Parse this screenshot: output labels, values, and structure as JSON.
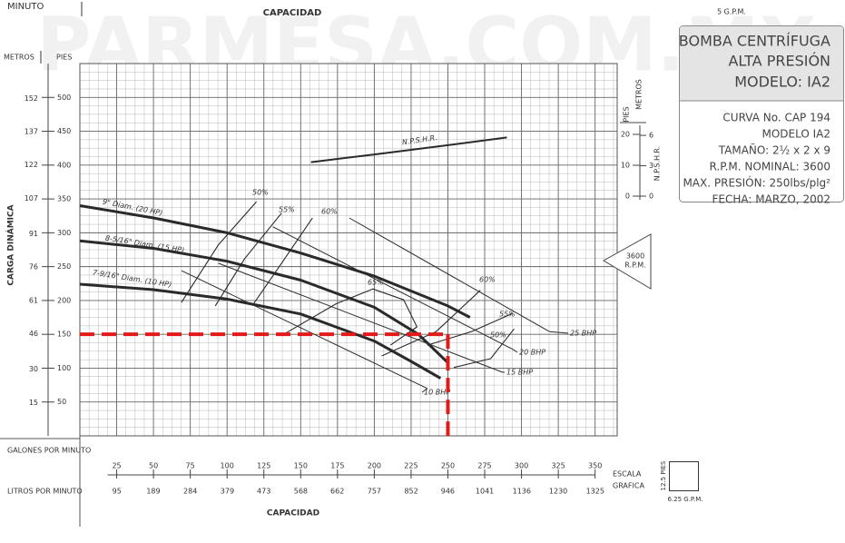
{
  "watermark": "PARMESA.COM.MX",
  "top_scale": {
    "left_label": "MINUTO",
    "label": "CAPACIDAD",
    "unit": "5 G.P.M."
  },
  "info_box": {
    "title": [
      "BOMBA CENTRÍFUGA",
      "ALTA PRESIÓN",
      "MODELO: IA2"
    ],
    "lines": [
      "CURVA No. CAP 194",
      "MODELO IA2",
      "TAMAÑO: 2½ x 2 x 9",
      "R.P.M. NOMINAL: 3600",
      "MAX. PRESIÓN: 250lbs/plg²",
      "FECHA: MARZO, 2002"
    ]
  },
  "rpm_marker": [
    "3600",
    "R.P.M."
  ],
  "chart_data": [
    {
      "type": "line",
      "xlabel": "CAPACIDAD",
      "xunit": "GALONES POR MINUTO",
      "x2unit": "LITROS POR MINUTO",
      "ylabel": "CARGA DINÁMICA",
      "yunit": "PIES",
      "y2unit": "METROS",
      "xlim": [
        0,
        365
      ],
      "xticks": [
        25,
        50,
        75,
        100,
        125,
        150,
        175,
        200,
        225,
        250,
        275,
        300,
        325,
        350
      ],
      "x2lim": [
        0,
        1381.5
      ],
      "x2ticks": [
        95,
        189,
        284,
        379,
        473,
        568,
        662,
        757,
        852,
        946,
        1041,
        1136,
        1230,
        1325
      ],
      "ylim": [
        0,
        550
      ],
      "yticks": [
        50,
        100,
        150,
        200,
        250,
        300,
        350,
        400,
        450,
        500
      ],
      "y2lim": [
        0,
        167.64
      ],
      "y2ticks": [
        15,
        30,
        46,
        61,
        76,
        91,
        107,
        122,
        137,
        152
      ],
      "grid": true,
      "grid_scale": {
        "title": [
          "ESCALA",
          "GRAFICA"
        ],
        "y": 12.5,
        "y_label": "12.5 PIES",
        "x": 6.25,
        "x_label": "6.25 G.P.M."
      },
      "series": [
        {
          "name": "9\" Diam. (20 HP)",
          "color": "#2a2a2a",
          "x": [
            0,
            50,
            100,
            150,
            200,
            250,
            265
          ],
          "values": [
            340,
            322,
            300,
            270,
            236,
            192,
            175
          ]
        },
        {
          "name": "8-5/16\" Diam. (15 HP)",
          "color": "#2a2a2a",
          "x": [
            0,
            50,
            100,
            150,
            200,
            230,
            250
          ],
          "values": [
            288,
            277,
            258,
            230,
            190,
            150,
            108
          ]
        },
        {
          "name": "7-9/16\" Diam. (10 HP)",
          "color": "#2a2a2a",
          "x": [
            0,
            50,
            100,
            150,
            200,
            225,
            245
          ],
          "values": [
            224,
            216,
            202,
            180,
            140,
            110,
            85
          ]
        }
      ],
      "efficiency": [
        {
          "name": "50%",
          "color": "#2a2a2a",
          "x": [
            69,
            94,
            120,
            null,
            254,
            279,
            295
          ],
          "values": [
            197,
            282,
            346,
            null,
            101,
            114,
            158
          ]
        },
        {
          "name": "55%",
          "color": "#2a2a2a",
          "x": [
            92,
            112,
            137,
            null,
            236,
            266,
            294
          ],
          "values": [
            192,
            262,
            329,
            null,
            134,
            154,
            181
          ]
        },
        {
          "name": "60%",
          "color": "#2a2a2a",
          "x": [
            118,
            137,
            158,
            null,
            205,
            242,
            272
          ],
          "values": [
            195,
            255,
            322,
            null,
            118,
            154,
            215
          ]
        },
        {
          "name": "65%",
          "color": "#2a2a2a",
          "x": [
            140,
            174,
            199,
            220,
            229,
            211
          ],
          "values": [
            152,
            195,
            217,
            201,
            161,
            134
          ]
        }
      ],
      "bhp": [
        {
          "name": "25 BHP",
          "color": "#2a2a2a",
          "x": [
            183,
            319
          ],
          "values": [
            322,
            154
          ]
        },
        {
          "name": "20 BHP",
          "color": "#2a2a2a",
          "x": [
            131,
            294
          ],
          "values": [
            309,
            128
          ]
        },
        {
          "name": "15 BHP",
          "color": "#2a2a2a",
          "x": [
            94,
            287
          ],
          "values": [
            255,
            94
          ]
        },
        {
          "name": "10 BHP",
          "color": "#2a2a2a",
          "x": [
            69,
            236
          ],
          "values": [
            244,
            70
          ]
        }
      ],
      "operating_point": {
        "x": 250,
        "y": 150,
        "color": "#e21a1a"
      }
    },
    {
      "type": "line",
      "ylabel": "N.P.S.H.R.",
      "yunit": "PIES",
      "y2unit": "METROS",
      "xlim": [
        0,
        365
      ],
      "ylim": [
        0,
        20
      ],
      "yticks": [
        0,
        10,
        20
      ],
      "y2lim": [
        0,
        6.096
      ],
      "y2ticks": [
        0,
        3,
        6
      ],
      "series": [
        {
          "name": "N.P.S.H.R.",
          "color": "#2a2a2a",
          "x": [
            157,
            200,
            250,
            290
          ],
          "values": [
            11,
            13.5,
            16.5,
            19
          ]
        }
      ]
    }
  ]
}
